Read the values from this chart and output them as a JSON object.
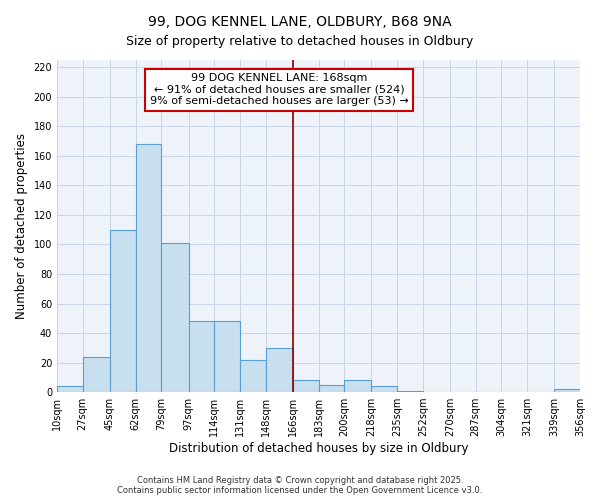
{
  "title": "99, DOG KENNEL LANE, OLDBURY, B68 9NA",
  "subtitle": "Size of property relative to detached houses in Oldbury",
  "xlabel": "Distribution of detached houses by size in Oldbury",
  "ylabel": "Number of detached properties",
  "bar_edges": [
    10,
    27,
    45,
    62,
    79,
    97,
    114,
    131,
    148,
    166,
    183,
    200,
    218,
    235,
    252,
    270,
    287,
    304,
    321,
    339,
    356
  ],
  "bar_heights": [
    4,
    24,
    110,
    168,
    101,
    48,
    48,
    22,
    30,
    8,
    5,
    8,
    4,
    1,
    0,
    0,
    0,
    0,
    0,
    2
  ],
  "tick_labels": [
    "10sqm",
    "27sqm",
    "45sqm",
    "62sqm",
    "79sqm",
    "97sqm",
    "114sqm",
    "131sqm",
    "148sqm",
    "166sqm",
    "183sqm",
    "200sqm",
    "218sqm",
    "235sqm",
    "252sqm",
    "270sqm",
    "287sqm",
    "304sqm",
    "321sqm",
    "339sqm",
    "356sqm"
  ],
  "bar_color": "#c8dff0",
  "bar_edge_color": "#5a9fd4",
  "property_line_x": 166,
  "property_line_color": "#8b0000",
  "annotation_line1": "99 DOG KENNEL LANE: 168sqm",
  "annotation_line2": "← 91% of detached houses are smaller (524)",
  "annotation_line3": "9% of semi-detached houses are larger (53) →",
  "annotation_box_facecolor": "#ffffff",
  "annotation_box_edgecolor": "#cc0000",
  "ylim": [
    0,
    225
  ],
  "yticks": [
    0,
    20,
    40,
    60,
    80,
    100,
    120,
    140,
    160,
    180,
    200,
    220
  ],
  "footnote1": "Contains HM Land Registry data © Crown copyright and database right 2025.",
  "footnote2": "Contains public sector information licensed under the Open Government Licence v3.0.",
  "title_fontsize": 10,
  "subtitle_fontsize": 9,
  "axis_label_fontsize": 8.5,
  "tick_fontsize": 7,
  "annotation_fontsize": 8,
  "footnote_fontsize": 6,
  "background_color": "#ffffff",
  "plot_bg_color": "#eef3fa",
  "grid_color": "#c8d4e8"
}
